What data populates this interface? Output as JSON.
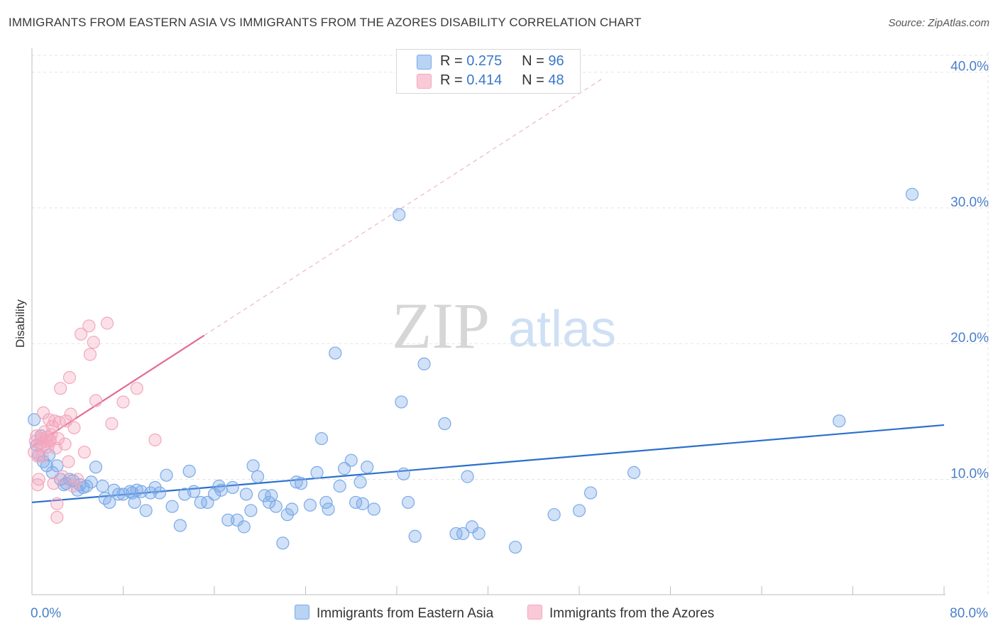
{
  "title": "IMMIGRANTS FROM EASTERN ASIA VS IMMIGRANTS FROM THE AZORES DISABILITY CORRELATION CHART",
  "source": "Source: ZipAtlas.com",
  "watermark": {
    "zip": "ZIP",
    "atlas": "atlas"
  },
  "legend": {
    "r_label": "R =",
    "n_label": "N =",
    "series": [
      {
        "r": "0.275",
        "n": "96"
      },
      {
        "r": "0.414",
        "n": "48"
      }
    ]
  },
  "bottom_legend": [
    "Immigrants from Eastern Asia",
    "Immigrants from the Azores"
  ],
  "chart_data": {
    "type": "scatter",
    "ylabel": "Disability",
    "xlim": [
      0,
      80
    ],
    "ylim": [
      1.5,
      41.5
    ],
    "x_tick_labels": [
      {
        "x": 0,
        "label": "0.0%"
      },
      {
        "x": 80,
        "label": "80.0%"
      }
    ],
    "y_ticks": [
      10,
      20,
      30,
      40
    ],
    "y_tick_labels": [
      "10.0%",
      "20.0%",
      "30.0%",
      "40.0%"
    ],
    "grid": true,
    "legend_position": "top-center",
    "series": [
      {
        "name": "Immigrants from Eastern Asia",
        "color": "#7aaae8",
        "line_color": "#2b6fcc",
        "trend": {
          "x": [
            0,
            80
          ],
          "y": [
            8.3,
            14.0
          ],
          "dashed_extension": false
        },
        "points": [
          [
            0.2,
            14.4
          ],
          [
            0.4,
            12.5
          ],
          [
            0.6,
            11.8
          ],
          [
            0.8,
            13.2
          ],
          [
            1.0,
            11.3
          ],
          [
            1.3,
            11.0
          ],
          [
            1.5,
            11.8
          ],
          [
            1.8,
            10.5
          ],
          [
            2.2,
            11.0
          ],
          [
            2.5,
            10.0
          ],
          [
            2.8,
            9.6
          ],
          [
            3.0,
            9.7
          ],
          [
            3.3,
            10.0
          ],
          [
            3.6,
            9.9
          ],
          [
            4.0,
            9.2
          ],
          [
            4.5,
            9.4
          ],
          [
            4.8,
            9.5
          ],
          [
            5.2,
            9.8
          ],
          [
            5.6,
            10.9
          ],
          [
            6.2,
            9.5
          ],
          [
            6.4,
            8.6
          ],
          [
            6.8,
            8.3
          ],
          [
            7.2,
            9.2
          ],
          [
            7.6,
            8.9
          ],
          [
            8.0,
            8.9
          ],
          [
            8.6,
            9.1
          ],
          [
            8.8,
            9.0
          ],
          [
            9.0,
            8.3
          ],
          [
            9.6,
            9.1
          ],
          [
            10.0,
            7.7
          ],
          [
            10.4,
            9.0
          ],
          [
            10.8,
            9.4
          ],
          [
            11.2,
            9.0
          ],
          [
            11.8,
            10.3
          ],
          [
            12.3,
            8.0
          ],
          [
            13.0,
            6.6
          ],
          [
            13.4,
            8.9
          ],
          [
            13.8,
            10.6
          ],
          [
            14.2,
            9.1
          ],
          [
            14.8,
            8.3
          ],
          [
            15.4,
            8.3
          ],
          [
            16.0,
            8.9
          ],
          [
            16.4,
            9.5
          ],
          [
            16.6,
            9.2
          ],
          [
            17.2,
            7.0
          ],
          [
            17.6,
            9.4
          ],
          [
            18.0,
            7.0
          ],
          [
            18.6,
            6.5
          ],
          [
            18.8,
            8.9
          ],
          [
            19.2,
            7.7
          ],
          [
            19.4,
            11.0
          ],
          [
            19.8,
            10.2
          ],
          [
            20.4,
            8.8
          ],
          [
            20.8,
            8.3
          ],
          [
            21.0,
            8.8
          ],
          [
            21.4,
            8.0
          ],
          [
            22.0,
            5.3
          ],
          [
            22.4,
            7.4
          ],
          [
            22.8,
            7.8
          ],
          [
            23.2,
            9.8
          ],
          [
            23.6,
            9.7
          ],
          [
            24.4,
            8.1
          ],
          [
            25.0,
            10.5
          ],
          [
            25.4,
            13.0
          ],
          [
            25.8,
            8.3
          ],
          [
            26.0,
            7.8
          ],
          [
            26.6,
            19.3
          ],
          [
            27.0,
            9.5
          ],
          [
            27.4,
            10.8
          ],
          [
            28.0,
            11.4
          ],
          [
            28.4,
            8.3
          ],
          [
            28.8,
            9.8
          ],
          [
            29.0,
            8.2
          ],
          [
            29.4,
            10.9
          ],
          [
            30.0,
            7.8
          ],
          [
            32.2,
            29.5
          ],
          [
            32.4,
            15.7
          ],
          [
            32.6,
            10.4
          ],
          [
            33.0,
            8.3
          ],
          [
            33.6,
            5.8
          ],
          [
            34.4,
            18.5
          ],
          [
            36.2,
            14.1
          ],
          [
            37.2,
            6.0
          ],
          [
            37.8,
            6.0
          ],
          [
            38.2,
            10.2
          ],
          [
            38.6,
            6.5
          ],
          [
            39.2,
            6.0
          ],
          [
            42.4,
            5.0
          ],
          [
            45.8,
            7.4
          ],
          [
            48.0,
            7.7
          ],
          [
            49.0,
            9.0
          ],
          [
            52.8,
            10.5
          ],
          [
            70.8,
            14.3
          ],
          [
            77.2,
            31.0
          ],
          [
            4.2,
            9.6
          ],
          [
            9.2,
            9.2
          ]
        ]
      },
      {
        "name": "Immigrants from the Azores",
        "color": "#f3a6bd",
        "line_color": "#e46a93",
        "trend": {
          "x": [
            0,
            15.1
          ],
          "y": [
            12.4,
            20.6
          ],
          "dashed_extension": {
            "x": [
              15.1,
              50
            ],
            "y": [
              20.6,
              39.5
            ]
          }
        },
        "points": [
          [
            0.2,
            12.0
          ],
          [
            0.3,
            12.8
          ],
          [
            0.4,
            13.2
          ],
          [
            0.5,
            9.6
          ],
          [
            0.5,
            11.7
          ],
          [
            0.6,
            10.0
          ],
          [
            0.7,
            12.6
          ],
          [
            0.8,
            13.0
          ],
          [
            0.9,
            11.7
          ],
          [
            1.0,
            14.9
          ],
          [
            1.0,
            12.5
          ],
          [
            1.1,
            13.5
          ],
          [
            1.2,
            12.8
          ],
          [
            1.3,
            13.1
          ],
          [
            1.4,
            12.4
          ],
          [
            1.5,
            14.4
          ],
          [
            1.6,
            12.8
          ],
          [
            1.6,
            12.9
          ],
          [
            1.7,
            13.3
          ],
          [
            1.8,
            13.9
          ],
          [
            1.9,
            9.7
          ],
          [
            2.0,
            14.3
          ],
          [
            2.1,
            12.3
          ],
          [
            2.2,
            7.2
          ],
          [
            2.2,
            8.2
          ],
          [
            2.3,
            13.0
          ],
          [
            2.4,
            14.2
          ],
          [
            2.5,
            16.7
          ],
          [
            2.7,
            10.2
          ],
          [
            2.9,
            12.6
          ],
          [
            3.0,
            14.3
          ],
          [
            3.2,
            11.3
          ],
          [
            3.3,
            17.5
          ],
          [
            3.4,
            14.8
          ],
          [
            3.6,
            9.5
          ],
          [
            3.7,
            13.8
          ],
          [
            4.0,
            10.0
          ],
          [
            4.3,
            20.7
          ],
          [
            4.6,
            12.0
          ],
          [
            5.0,
            21.3
          ],
          [
            5.1,
            19.2
          ],
          [
            5.4,
            20.1
          ],
          [
            5.6,
            15.8
          ],
          [
            6.6,
            21.5
          ],
          [
            7.0,
            14.1
          ],
          [
            8.0,
            15.7
          ],
          [
            9.2,
            16.7
          ],
          [
            10.8,
            12.9
          ]
        ]
      }
    ]
  }
}
